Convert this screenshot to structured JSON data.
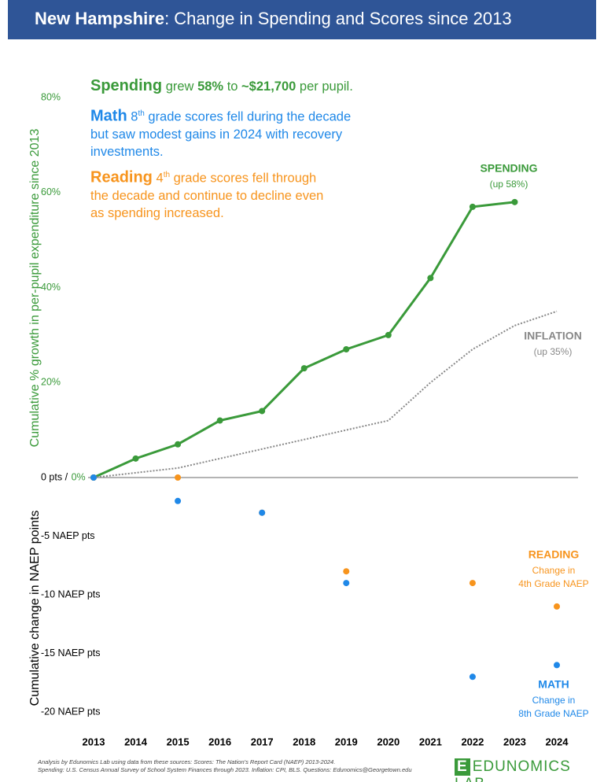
{
  "header": {
    "bold": "New Hampshire",
    "rest": ": Change in Spending and Scores since 2013"
  },
  "notes": [
    {
      "color": "#3a9a3a",
      "segments": [
        "Spending",
        "grew",
        "58%",
        "to",
        "~$21,700",
        "per pupil."
      ]
    },
    {
      "color": "#1f88e8",
      "segments": [
        "Math",
        "8",
        "th",
        "grade scores fell during the decade but saw modest gains in 2024 with recovery investments."
      ]
    },
    {
      "color": "#f7941d",
      "segments": [
        "Reading",
        "4",
        "th",
        "grade scores fell through the decade and continue to decline even as spending increased."
      ]
    }
  ],
  "chart_data": [
    {
      "type": "line",
      "y_label": "Cumulative % growth in per-pupil expenditure since 2013",
      "y_label_color": "#3a9a3a",
      "x": [
        2013,
        2014,
        2015,
        2016,
        2017,
        2018,
        2019,
        2020,
        2021,
        2022,
        2023,
        2024
      ],
      "xlim": [
        2013,
        2024
      ],
      "xticks": [
        2013,
        2014,
        2015,
        2016,
        2017,
        2018,
        2019,
        2020,
        2021,
        2022,
        2023,
        2024
      ],
      "ylim": [
        0,
        80
      ],
      "yticks": [
        {
          "value": 0,
          "label": "0%"
        },
        {
          "value": 20,
          "label": "20%"
        },
        {
          "value": 40,
          "label": "40%"
        },
        {
          "value": 60,
          "label": "60%"
        },
        {
          "value": 80,
          "label": "80%"
        }
      ],
      "series": [
        {
          "name": "SPENDING",
          "label_lines": [
            "(up 58%)"
          ],
          "color": "#3a9a3a",
          "dotted": false,
          "markers": true,
          "values": [
            0,
            4,
            7,
            12,
            14,
            23,
            27,
            30,
            42,
            57,
            58,
            null
          ]
        },
        {
          "name": "INFLATION",
          "label_lines": [
            "(up 35%)"
          ],
          "color": "#888888",
          "dotted": true,
          "markers": false,
          "values": [
            0,
            1,
            2,
            4,
            6,
            8,
            10,
            12,
            20,
            27,
            32,
            35
          ]
        }
      ]
    },
    {
      "type": "line",
      "y_label": "Cumulative change in NAEP points",
      "y_label_color": "#000000",
      "x": [
        2013,
        2014,
        2015,
        2016,
        2017,
        2018,
        2019,
        2020,
        2021,
        2022,
        2023,
        2024
      ],
      "xlim": [
        2013,
        2024
      ],
      "ylim": [
        -20,
        0
      ],
      "yticks": [
        {
          "value": 0,
          "label": "0 pts /"
        },
        {
          "value": -5,
          "label": "-5 NAEP pts"
        },
        {
          "value": -10,
          "label": "-10 NAEP pts"
        },
        {
          "value": -15,
          "label": "-15 NAEP pts"
        },
        {
          "value": -20,
          "label": "-20 NAEP pts"
        }
      ],
      "series": [
        {
          "name": "READING",
          "label_lines": [
            "Change in",
            "4th Grade NAEP"
          ],
          "color": "#f7941d",
          "dotted": false,
          "markers": true,
          "values": [
            0,
            null,
            0,
            null,
            -3,
            null,
            -8,
            null,
            null,
            -9,
            null,
            -11
          ]
        },
        {
          "name": "MATH",
          "label_lines": [
            "Change in",
            "8th Grade NAEP"
          ],
          "color": "#1f88e8",
          "dotted": false,
          "markers": true,
          "values": [
            0,
            null,
            -2,
            null,
            -3,
            null,
            -9,
            null,
            null,
            -17,
            null,
            -16
          ]
        }
      ]
    }
  ],
  "footer": {
    "lines": [
      "Analysis by Edunomics Lab using data from these sources: Scores: The Nation's Report Card (NAEP) 2013-2024.",
      "Spending: U.S. Census Annual Survey of School System Finances through 2023. Inflation: CPI, BLS. Questions: Edunomics@Georgetown.edu"
    ],
    "logo": "EDUNOMICS LAB"
  }
}
